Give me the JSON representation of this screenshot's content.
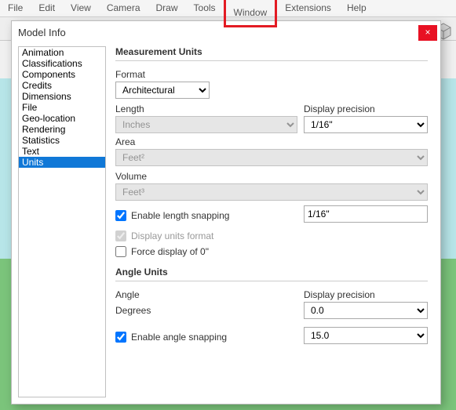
{
  "menubar": {
    "items": [
      "File",
      "Edit",
      "View",
      "Camera",
      "Draw",
      "Tools",
      "Window",
      "Extensions",
      "Help"
    ],
    "highlighted": "Window"
  },
  "dialog": {
    "title": "Model Info",
    "close": "×",
    "sidebar": {
      "items": [
        "Animation",
        "Classifications",
        "Components",
        "Credits",
        "Dimensions",
        "File",
        "Geo-location",
        "Rendering",
        "Statistics",
        "Text",
        "Units"
      ],
      "selected": "Units"
    },
    "sections": {
      "measurement": {
        "heading": "Measurement Units",
        "format": {
          "label": "Format",
          "value": "Architectural"
        },
        "length": {
          "label": "Length",
          "value": "Inches",
          "disabled": true
        },
        "precision": {
          "label": "Display precision",
          "value": "1/16\""
        },
        "area": {
          "label": "Area",
          "value": "Feet²",
          "disabled": true
        },
        "volume": {
          "label": "Volume",
          "value": "Feet³",
          "disabled": true
        },
        "snap": {
          "label": "Enable length snapping",
          "checked": true,
          "value": "1/16\""
        },
        "unitsfmt": {
          "label": "Display units format",
          "checked": true,
          "disabled": true
        },
        "force0": {
          "label": "Force display of 0\"",
          "checked": false
        }
      },
      "angle": {
        "heading": "Angle Units",
        "angle": {
          "label": "Angle",
          "value": "Degrees"
        },
        "precision": {
          "label": "Display precision",
          "value": "0.0"
        },
        "snap": {
          "label": "Enable angle snapping",
          "checked": true,
          "value": "15.0"
        }
      }
    }
  }
}
